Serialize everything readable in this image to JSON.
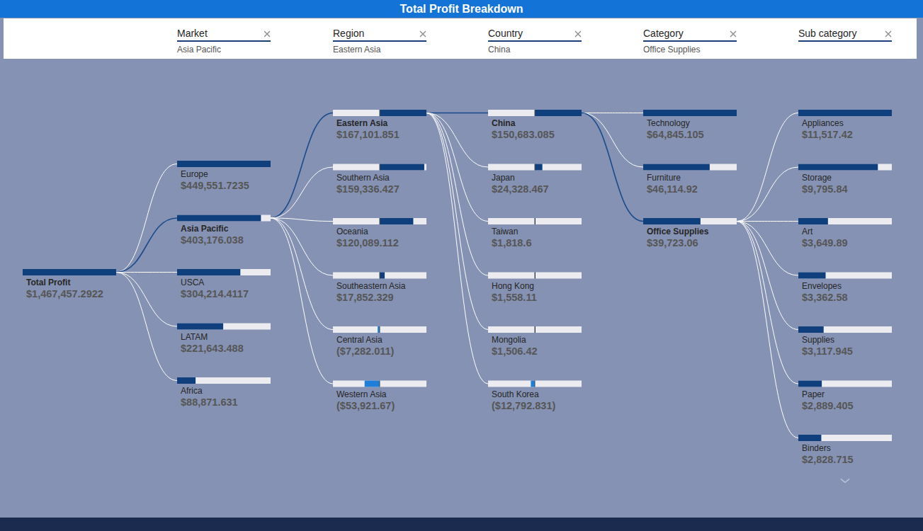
{
  "chart_data": {
    "type": "decomposition_tree",
    "title": "Total Profit Breakdown",
    "data_labels": true,
    "root": {
      "label": "Total Profit",
      "value": 1467457.2922,
      "value_label": "$1,467,457.2922"
    },
    "levels": [
      {
        "name": "Market",
        "selected": "Asia Pacific",
        "categories": [
          "Europe",
          "Asia Pacific",
          "USCA",
          "LATAM",
          "Africa"
        ],
        "values": [
          449551.7235,
          403176.038,
          304214.4117,
          221643.488,
          88871.631
        ],
        "value_labels": [
          "$449,551.7235",
          "$403,176.038",
          "$304,214.4117",
          "$221,643.488",
          "$88,871.631"
        ]
      },
      {
        "name": "Region",
        "selected": "Eastern Asia",
        "categories": [
          "Eastern Asia",
          "Southern Asia",
          "Oceania",
          "Southeastern Asia",
          "Central Asia",
          "Western Asia"
        ],
        "values": [
          167101.851,
          159336.427,
          120089.112,
          17852.329,
          -7282.011,
          -53921.67
        ],
        "value_labels": [
          "$167,101.851",
          "$159,336.427",
          "$120,089.112",
          "$17,852.329",
          "($7,282.011)",
          "($53,921.67)"
        ]
      },
      {
        "name": "Country",
        "selected": "China",
        "categories": [
          "China",
          "Japan",
          "Taiwan",
          "Hong Kong",
          "Mongolia",
          "South Korea"
        ],
        "values": [
          150683.085,
          24328.467,
          1818.6,
          1558.11,
          1506.42,
          -12792.831
        ],
        "value_labels": [
          "$150,683.085",
          "$24,328.467",
          "$1,818.6",
          "$1,558.11",
          "$1,506.42",
          "($12,792.831)"
        ]
      },
      {
        "name": "Category",
        "selected": "Office Supplies",
        "categories": [
          "Technology",
          "Furniture",
          "Office Supplies"
        ],
        "values": [
          64845.105,
          46114.92,
          39723.06
        ],
        "value_labels": [
          "$64,845.105",
          "$46,114.92",
          "$39,723.06"
        ]
      },
      {
        "name": "Sub category",
        "categories": [
          "Appliances",
          "Storage",
          "Art",
          "Envelopes",
          "Supplies",
          "Paper",
          "Binders"
        ],
        "values": [
          11517.42,
          9795.84,
          3649.89,
          3362.58,
          3117.945,
          2889.405,
          2828.715
        ],
        "value_labels": [
          "$11,517.42",
          "$9,795.84",
          "$3,649.89",
          "$3,362.58",
          "$3,117.945",
          "$2,889.405",
          "$2,828.715"
        ]
      }
    ]
  }
}
